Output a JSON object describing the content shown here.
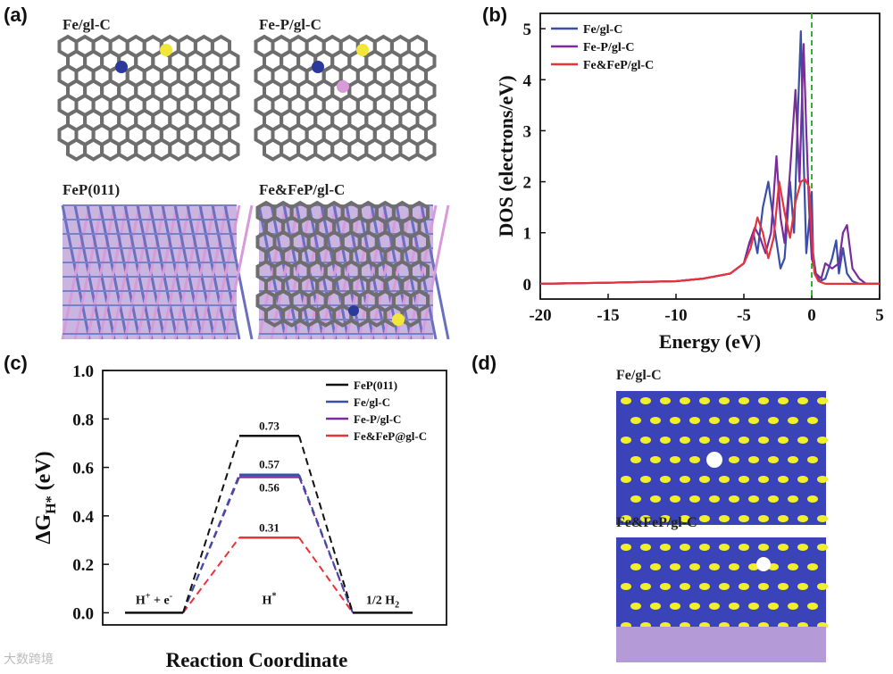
{
  "panels": {
    "a": {
      "letter": "(a)",
      "structures": [
        {
          "label": "Fe/gl-C"
        },
        {
          "label": "Fe-P/gl-C"
        },
        {
          "label": "FeP(011)"
        },
        {
          "label": "Fe&FeP/gl-C"
        }
      ]
    },
    "b": {
      "letter": "(b)"
    },
    "c": {
      "letter": "(c)"
    },
    "d": {
      "letter": "(d)",
      "maps": [
        {
          "label": "Fe/gl-C"
        },
        {
          "label": "Fe&FeP/gl-C"
        }
      ]
    }
  },
  "colors": {
    "black": "#111111",
    "blue": "#3a4fa6",
    "purple": "#7a2d9a",
    "red": "#e8323a",
    "green_fermi": "#35b535",
    "carbon": "#6e6e6e",
    "fe_atom": "#2b3a9a",
    "p_atom": "#d89ad8",
    "s_atom": "#f2e63a",
    "density_blue": "#3a43b8",
    "density_yellow": "#f1ee2a"
  },
  "watermark": "大数跨境",
  "chart_data": [
    {
      "type": "line",
      "panel": "b",
      "xlabel": "Energy (eV)",
      "ylabel": "DOS (electrons/eV)",
      "xlim": [
        -20,
        5
      ],
      "ylim": [
        -0.3,
        5.3
      ],
      "xticks": [
        -20,
        -15,
        -10,
        -5,
        0,
        5
      ],
      "yticks": [
        0,
        1,
        2,
        3,
        4,
        5
      ],
      "fermi_level": 0,
      "legend": "top-left",
      "series": [
        {
          "name": "Fe/gl-C",
          "color": "#3a4fa6",
          "x": [
            -20,
            -15,
            -10,
            -8,
            -6,
            -5,
            -4.7,
            -4.3,
            -4.0,
            -3.6,
            -3.2,
            -2.8,
            -2.3,
            -2.0,
            -1.6,
            -1.3,
            -1.0,
            -0.8,
            -0.6,
            -0.4,
            -0.2,
            0.0,
            0.1,
            0.3,
            0.6,
            1.0,
            1.5,
            1.8,
            2.0,
            2.3,
            2.6,
            3.0,
            3.5,
            5
          ],
          "y": [
            0,
            0.02,
            0.05,
            0.1,
            0.2,
            0.4,
            0.7,
            1.0,
            0.6,
            1.5,
            2.0,
            1.2,
            0.3,
            0.5,
            2.0,
            1.0,
            3.5,
            4.95,
            2.5,
            0.6,
            1.2,
            1.8,
            0.6,
            0.2,
            0.05,
            0.1,
            0.5,
            0.85,
            0.2,
            0.7,
            0.2,
            0.05,
            0.0,
            0
          ]
        },
        {
          "name": "Fe-P/gl-C",
          "color": "#7a2d9a",
          "x": [
            -20,
            -15,
            -10,
            -8,
            -6,
            -5,
            -4.6,
            -4.2,
            -3.8,
            -3.4,
            -3.0,
            -2.6,
            -2.3,
            -2.0,
            -1.6,
            -1.2,
            -0.9,
            -0.6,
            -0.4,
            -0.2,
            0.0,
            0.3,
            0.7,
            1.0,
            1.5,
            2.0,
            2.3,
            2.6,
            3.0,
            3.5,
            4.0,
            5
          ],
          "y": [
            0,
            0.02,
            0.05,
            0.1,
            0.2,
            0.4,
            0.8,
            1.1,
            0.9,
            0.6,
            1.0,
            2.5,
            1.3,
            0.8,
            2.2,
            3.8,
            2.0,
            4.7,
            3.0,
            1.5,
            0.5,
            0.2,
            0.1,
            0.4,
            0.3,
            0.4,
            1.0,
            1.15,
            0.3,
            0.1,
            0.0,
            0
          ]
        },
        {
          "name": "Fe&FeP/gl-C",
          "color": "#e8323a",
          "x": [
            -20,
            -15,
            -10,
            -8,
            -6,
            -5,
            -4.5,
            -4.0,
            -3.6,
            -3.2,
            -2.8,
            -2.4,
            -2.0,
            -1.6,
            -1.2,
            -0.8,
            -0.5,
            -0.2,
            0.0,
            0.2,
            0.5,
            1.0,
            5
          ],
          "y": [
            0,
            0.02,
            0.05,
            0.1,
            0.2,
            0.4,
            0.7,
            1.3,
            1.0,
            0.5,
            0.9,
            2.0,
            1.4,
            0.9,
            1.6,
            2.0,
            2.05,
            1.9,
            1.0,
            0.2,
            0.05,
            0.0,
            0
          ]
        }
      ]
    },
    {
      "type": "line",
      "panel": "c",
      "xlabel": "Reaction Coordinate",
      "ylabel": "ΔGH* (eV)",
      "ylabel_main": "ΔG",
      "ylabel_sub": "H*",
      "ylabel_unit": " (eV)",
      "ylim": [
        -0.05,
        1.0
      ],
      "yticks": [
        0.0,
        0.2,
        0.4,
        0.6,
        0.8,
        1.0
      ],
      "ytick_labels": [
        "0.0",
        "0.2",
        "0.4",
        "0.6",
        "0.8",
        "1.0"
      ],
      "categories": [
        "H+ + e-",
        "H*",
        "1/2 H2"
      ],
      "state_labels": [
        {
          "main": "H",
          "sup": "+",
          "mid": " + e",
          "sup2": "-"
        },
        {
          "main": "H",
          "sup": "*"
        },
        {
          "main": "1/2 H",
          "sub": "2"
        }
      ],
      "legend": "top-right",
      "series": [
        {
          "name": "FeP(011)",
          "color": "#111111",
          "values": [
            0,
            0.73,
            0
          ],
          "label": "0.73"
        },
        {
          "name": "Fe/gl-C",
          "color": "#3a4fa6",
          "values": [
            0,
            0.57,
            0
          ],
          "label": "0.57"
        },
        {
          "name": "Fe-P/gl-C",
          "color": "#7a2d9a",
          "values": [
            0,
            0.56,
            0
          ],
          "label": "0.56"
        },
        {
          "name": "Fe&FeP@gl-C",
          "color": "#e8323a",
          "values": [
            0,
            0.31,
            0
          ],
          "label": "0.31"
        }
      ]
    }
  ]
}
